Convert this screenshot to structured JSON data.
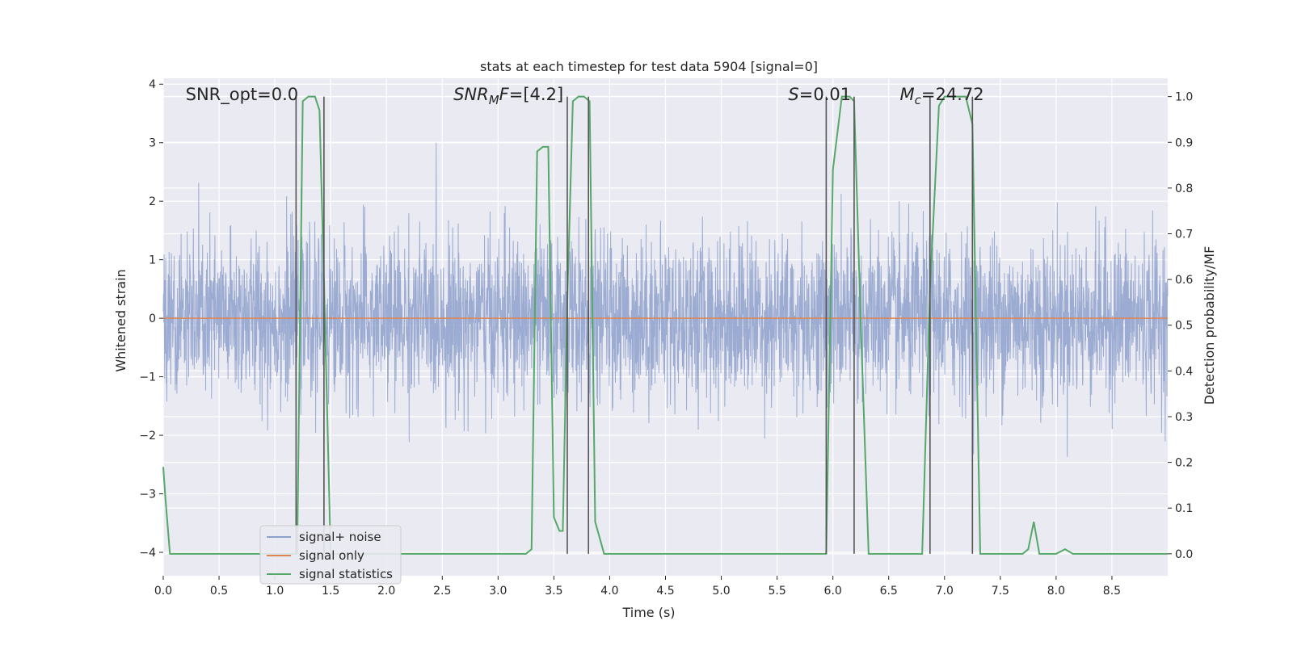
{
  "chart_data": {
    "type": "line",
    "title": "stats at each timestep for test data 5904 [signal=0]",
    "xlabel": "Time (s)",
    "ylabel": "Whitened strain",
    "y2label": "Detection probability/MF",
    "xlim": [
      0.0,
      9.0
    ],
    "ylim": [
      -4.4,
      4.1
    ],
    "y2lim": [
      -0.048,
      1.04
    ],
    "xticks": [
      "0.0",
      "0.5",
      "1.0",
      "1.5",
      "2.0",
      "2.5",
      "3.0",
      "3.5",
      "4.0",
      "4.5",
      "5.0",
      "5.5",
      "6.0",
      "6.5",
      "7.0",
      "7.5",
      "8.0",
      "8.5"
    ],
    "yticks": [
      "4",
      "3",
      "2",
      "1",
      "0",
      "−1",
      "−2",
      "−3",
      "−4"
    ],
    "y2ticks": [
      "1.0",
      "0.9",
      "0.8",
      "0.7",
      "0.6",
      "0.5",
      "0.4",
      "0.3",
      "0.2",
      "0.1",
      "0.0"
    ],
    "grid": true,
    "legend_position": "lower-left",
    "colors": {
      "noise": "#8da0cb",
      "signal": "#dd8452",
      "stats": "#55a868",
      "vlines": "#555555",
      "bg": "#eaeaf2"
    },
    "annotations": [
      {
        "text": "SNR_opt=0.0",
        "x": 0.2
      },
      {
        "text": "SNRMF=[4.2]",
        "x": 2.6
      },
      {
        "text": "S=0.01",
        "x": 5.6
      },
      {
        "text": "Mc=24.72",
        "x": 6.6
      }
    ],
    "vertical_lines_x": [
      1.19,
      1.44,
      3.62,
      3.81,
      5.94,
      6.19,
      6.87,
      7.25
    ],
    "noise_envelope": {
      "sigma": 0.7,
      "typical_max": 2.9,
      "typical_min": -2.9
    },
    "series": [
      {
        "name": "signal+ noise",
        "note_type": "noise",
        "values": "random whitened noise, sigma≈0.7"
      },
      {
        "name": "signal only",
        "x": [
          0.0,
          9.0
        ],
        "y": [
          0.0,
          0.0
        ]
      },
      {
        "name": "signal statistics",
        "x": [
          0.0,
          0.02,
          0.06,
          0.12,
          0.5,
          1.0,
          1.15,
          1.2,
          1.25,
          1.3,
          1.36,
          1.4,
          1.45,
          1.5,
          1.6,
          2.0,
          3.0,
          3.25,
          3.3,
          3.35,
          3.4,
          3.45,
          3.5,
          3.55,
          3.58,
          3.62,
          3.67,
          3.72,
          3.77,
          3.82,
          3.87,
          3.95,
          4.0,
          5.0,
          5.94,
          6.0,
          6.08,
          6.15,
          6.19,
          6.25,
          6.32,
          6.4,
          6.8,
          6.87,
          6.95,
          7.0,
          7.1,
          7.19,
          7.25,
          7.32,
          7.4,
          7.7,
          7.75,
          7.8,
          7.85,
          7.9,
          8.0,
          8.08,
          8.15,
          8.25,
          9.0
        ],
        "y": [
          0.19,
          0.12,
          0.0,
          0.0,
          0.0,
          0.0,
          0.0,
          0.0,
          0.99,
          1.0,
          1.0,
          0.97,
          0.5,
          0.0,
          0.0,
          0.0,
          0.0,
          0.0,
          0.01,
          0.88,
          0.89,
          0.89,
          0.08,
          0.05,
          0.05,
          0.55,
          0.99,
          1.0,
          1.0,
          0.99,
          0.07,
          0.0,
          0.0,
          0.0,
          0.0,
          0.84,
          1.0,
          1.0,
          0.99,
          0.5,
          0.0,
          0.0,
          0.0,
          0.58,
          0.98,
          1.0,
          1.0,
          1.0,
          0.94,
          0.0,
          0.0,
          0.0,
          0.01,
          0.07,
          0.0,
          0.0,
          0.0,
          0.01,
          0.0,
          0.0,
          0.0
        ]
      }
    ]
  }
}
